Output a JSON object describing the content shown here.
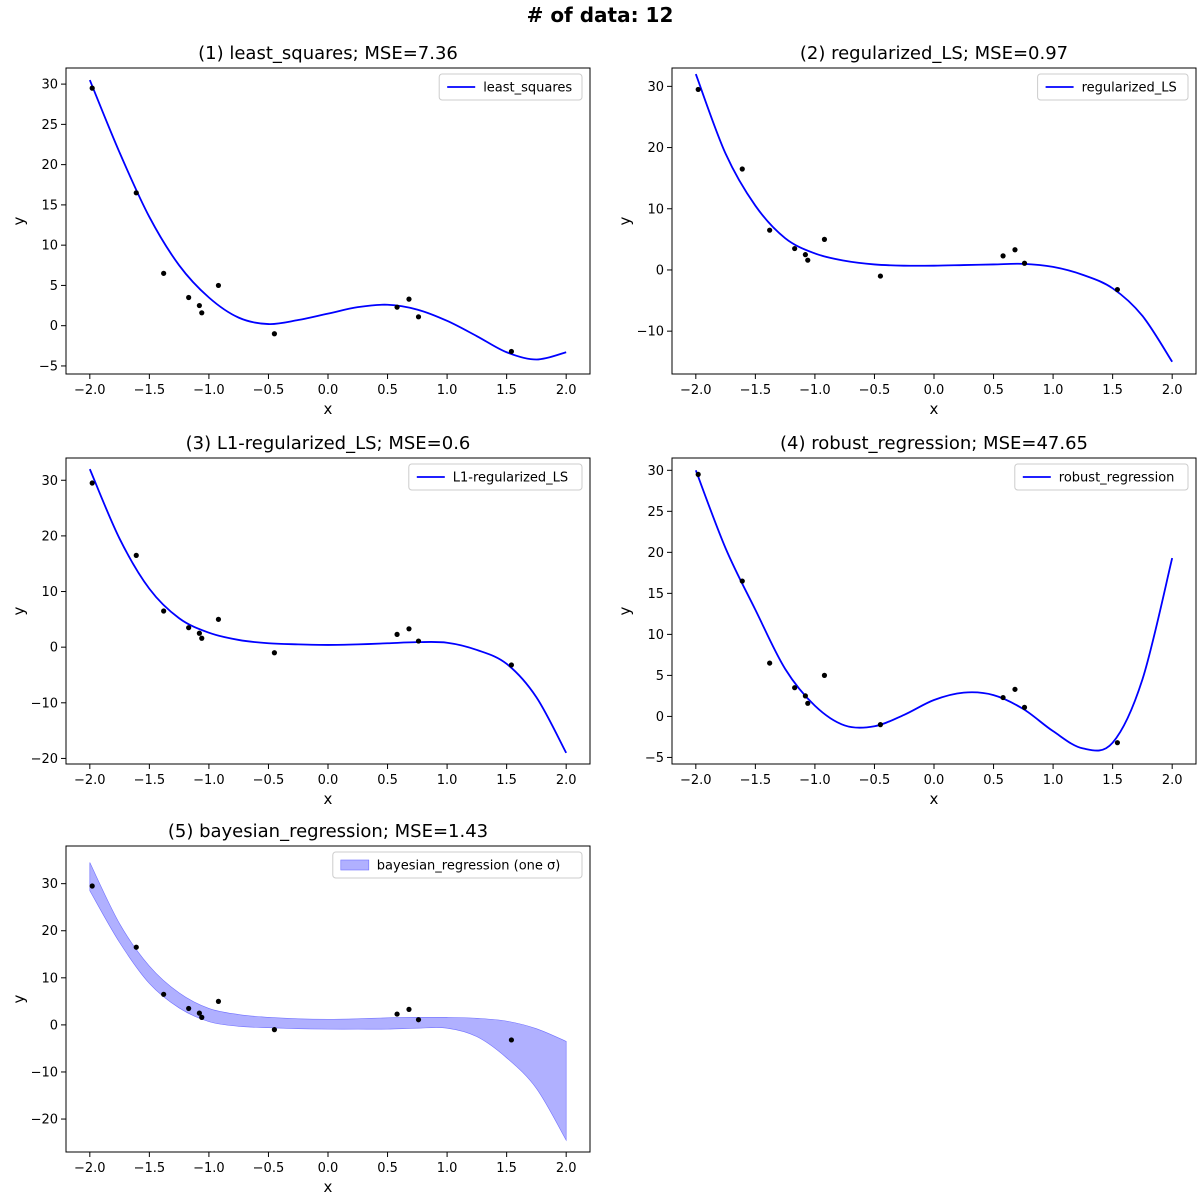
{
  "figure": {
    "suptitle": "# of data: 12"
  },
  "colors": {
    "line": "#0000ff",
    "points": "#000000",
    "band": "#b0b0ff",
    "band_edge": "#7070ff",
    "axes": "#000000"
  },
  "chart_data": [
    {
      "type": "line",
      "title": "(1) least_squares; MSE=7.36",
      "xlabel": "x",
      "ylabel": "y",
      "xlim": [
        -2.2,
        2.2
      ],
      "ylim": [
        -6,
        32
      ],
      "xticks": [
        -2.0,
        -1.5,
        -1.0,
        -0.5,
        0.0,
        0.5,
        1.0,
        1.5,
        2.0
      ],
      "yticks": [
        -5,
        0,
        5,
        10,
        15,
        20,
        25,
        30
      ],
      "legend": {
        "label": "least_squares",
        "placement": "upper right"
      },
      "series": [
        {
          "name": "least_squares",
          "x": [
            -2.0,
            -1.75,
            -1.5,
            -1.25,
            -1.0,
            -0.75,
            -0.5,
            -0.25,
            0.0,
            0.25,
            0.5,
            0.75,
            1.0,
            1.25,
            1.5,
            1.75,
            2.0
          ],
          "y": [
            30.5,
            21.5,
            13.5,
            7.5,
            3.5,
            1.0,
            0.2,
            0.7,
            1.5,
            2.3,
            2.6,
            2.0,
            0.6,
            -1.3,
            -3.3,
            -4.2,
            -3.3
          ]
        }
      ],
      "points": {
        "x": [
          -1.98,
          -1.61,
          -1.38,
          -1.17,
          -1.08,
          -1.06,
          -0.92,
          -0.45,
          0.58,
          0.68,
          0.76,
          1.54
        ],
        "y": [
          29.5,
          16.5,
          6.5,
          3.5,
          2.5,
          1.6,
          5.0,
          -1.0,
          2.3,
          3.3,
          1.1,
          -3.2
        ]
      }
    },
    {
      "type": "line",
      "title": "(2) regularized_LS; MSE=0.97",
      "xlabel": "x",
      "ylabel": "y",
      "xlim": [
        -2.2,
        2.2
      ],
      "ylim": [
        -17,
        33
      ],
      "xticks": [
        -2.0,
        -1.5,
        -1.0,
        -0.5,
        0.0,
        0.5,
        1.0,
        1.5,
        2.0
      ],
      "yticks": [
        -10,
        0,
        10,
        20,
        30
      ],
      "legend": {
        "label": "regularized_LS",
        "placement": "upper right"
      },
      "series": [
        {
          "name": "regularized_LS",
          "x": [
            -2.0,
            -1.75,
            -1.5,
            -1.25,
            -1.0,
            -0.75,
            -0.5,
            -0.25,
            0.0,
            0.25,
            0.5,
            0.75,
            1.0,
            1.25,
            1.5,
            1.75,
            2.0
          ],
          "y": [
            32.0,
            19.0,
            10.5,
            5.2,
            2.7,
            1.5,
            0.9,
            0.7,
            0.7,
            0.8,
            0.9,
            1.0,
            0.5,
            -0.8,
            -3.0,
            -7.5,
            -15.0
          ]
        }
      ],
      "points": {
        "x": [
          -1.98,
          -1.61,
          -1.38,
          -1.17,
          -1.08,
          -1.06,
          -0.92,
          -0.45,
          0.58,
          0.68,
          0.76,
          1.54
        ],
        "y": [
          29.5,
          16.5,
          6.5,
          3.5,
          2.5,
          1.6,
          5.0,
          -1.0,
          2.3,
          3.3,
          1.1,
          -3.2
        ]
      }
    },
    {
      "type": "line",
      "title": "(3) L1-regularized_LS; MSE=0.6",
      "xlabel": "x",
      "ylabel": "y",
      "xlim": [
        -2.2,
        2.2
      ],
      "ylim": [
        -21,
        34
      ],
      "xticks": [
        -2.0,
        -1.5,
        -1.0,
        -0.5,
        0.0,
        0.5,
        1.0,
        1.5,
        2.0
      ],
      "yticks": [
        -20,
        -10,
        0,
        10,
        20,
        30
      ],
      "legend": {
        "label": "L1-regularized_LS",
        "placement": "upper right"
      },
      "series": [
        {
          "name": "L1-regularized_LS",
          "x": [
            -2.0,
            -1.75,
            -1.5,
            -1.25,
            -1.0,
            -0.75,
            -0.5,
            -0.25,
            0.0,
            0.25,
            0.5,
            0.75,
            1.0,
            1.25,
            1.5,
            1.75,
            2.0
          ],
          "y": [
            32.0,
            19.5,
            10.5,
            5.2,
            2.6,
            1.3,
            0.7,
            0.5,
            0.4,
            0.5,
            0.7,
            0.9,
            0.8,
            -0.5,
            -3.0,
            -9.0,
            -19.0
          ]
        }
      ],
      "points": {
        "x": [
          -1.98,
          -1.61,
          -1.38,
          -1.17,
          -1.08,
          -1.06,
          -0.92,
          -0.45,
          0.58,
          0.68,
          0.76,
          1.54
        ],
        "y": [
          29.5,
          16.5,
          6.5,
          3.5,
          2.5,
          1.6,
          5.0,
          -1.0,
          2.3,
          3.3,
          1.1,
          -3.2
        ]
      }
    },
    {
      "type": "line",
      "title": "(4) robust_regression; MSE=47.65",
      "xlabel": "x",
      "ylabel": "y",
      "xlim": [
        -2.2,
        2.2
      ],
      "ylim": [
        -5.8,
        31.5
      ],
      "xticks": [
        -2.0,
        -1.5,
        -1.0,
        -0.5,
        0.0,
        0.5,
        1.0,
        1.5,
        2.0
      ],
      "yticks": [
        -5,
        0,
        5,
        10,
        15,
        20,
        25,
        30
      ],
      "legend": {
        "label": "robust_regression",
        "placement": "upper right"
      },
      "series": [
        {
          "name": "robust_regression",
          "x": [
            -2.0,
            -1.75,
            -1.5,
            -1.25,
            -1.0,
            -0.75,
            -0.5,
            -0.25,
            0.0,
            0.25,
            0.5,
            0.75,
            1.0,
            1.25,
            1.5,
            1.75,
            2.0
          ],
          "y": [
            30.0,
            20.5,
            13.0,
            5.8,
            1.3,
            -1.1,
            -1.2,
            0.2,
            2.0,
            2.9,
            2.6,
            0.9,
            -1.8,
            -3.9,
            -3.2,
            4.5,
            19.3
          ]
        }
      ],
      "points": {
        "x": [
          -1.98,
          -1.61,
          -1.38,
          -1.17,
          -1.08,
          -1.06,
          -0.92,
          -0.45,
          0.58,
          0.68,
          0.76,
          1.54
        ],
        "y": [
          29.5,
          16.5,
          6.5,
          3.5,
          2.5,
          1.6,
          5.0,
          -1.0,
          2.3,
          3.3,
          1.1,
          -3.2
        ]
      }
    },
    {
      "type": "area",
      "title": "(5) bayesian_regression; MSE=1.43",
      "xlabel": "x",
      "ylabel": "y",
      "xlim": [
        -2.2,
        2.2
      ],
      "ylim": [
        -27,
        38
      ],
      "xticks": [
        -2.0,
        -1.5,
        -1.0,
        -0.5,
        0.0,
        0.5,
        1.0,
        1.5,
        2.0
      ],
      "yticks": [
        -20,
        -10,
        0,
        10,
        20,
        30
      ],
      "legend": {
        "label": "bayesian_regression (one σ)",
        "placement": "upper right"
      },
      "band": {
        "name": "bayesian_regression (one σ)",
        "x": [
          -2.0,
          -1.75,
          -1.5,
          -1.25,
          -1.0,
          -0.75,
          -0.5,
          -0.25,
          0.0,
          0.25,
          0.5,
          0.75,
          1.0,
          1.25,
          1.5,
          1.75,
          2.0
        ],
        "upper": [
          34.5,
          21.5,
          12.5,
          6.8,
          3.5,
          2.2,
          1.6,
          1.3,
          1.2,
          1.3,
          1.5,
          1.6,
          1.6,
          1.4,
          0.8,
          -0.8,
          -3.5
        ],
        "lower": [
          28.5,
          17.5,
          8.8,
          3.6,
          0.7,
          -0.3,
          -0.6,
          -0.8,
          -0.9,
          -0.9,
          -0.9,
          -0.7,
          -0.7,
          -2.5,
          -7.0,
          -13.5,
          -24.5
        ]
      },
      "points": {
        "x": [
          -1.98,
          -1.61,
          -1.38,
          -1.17,
          -1.08,
          -1.06,
          -0.92,
          -0.45,
          0.58,
          0.68,
          0.76,
          1.54
        ],
        "y": [
          29.5,
          16.5,
          6.5,
          3.5,
          2.5,
          1.6,
          5.0,
          -1.0,
          2.3,
          3.3,
          1.1,
          -3.2
        ]
      }
    }
  ]
}
